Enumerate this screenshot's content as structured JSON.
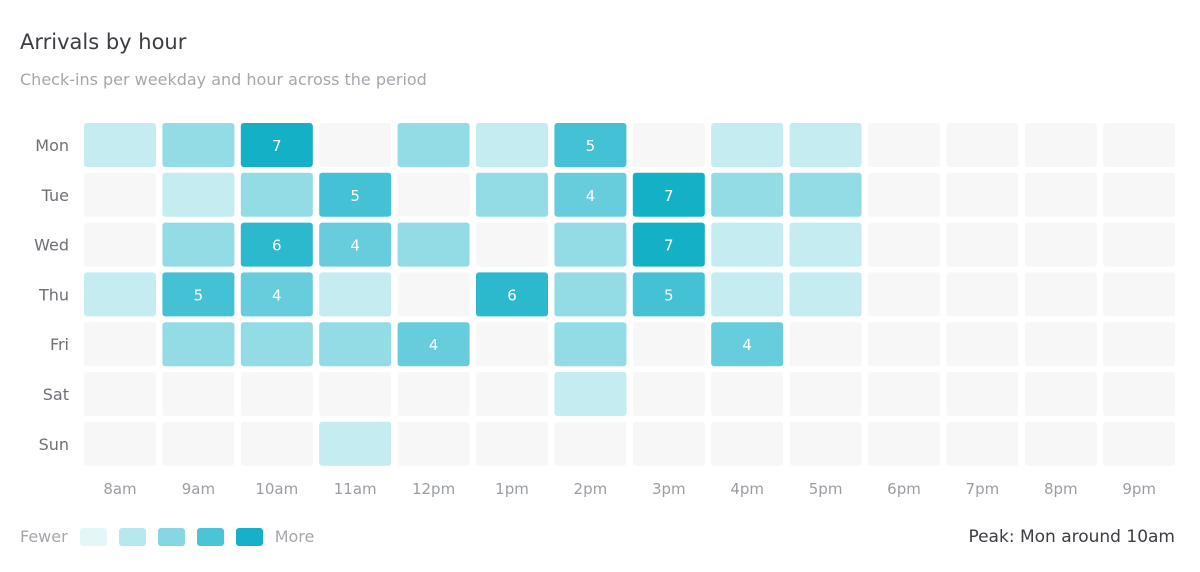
{
  "title": "Arrivals by hour",
  "subtitle": "Check-ins per weekday and hour across the period",
  "legend": {
    "low_label": "Fewer",
    "high_label": "More",
    "colors": [
      "#e3f6f8",
      "#b6e8ee",
      "#86d7e3",
      "#4cc4d8",
      "#16b1c8"
    ]
  },
  "peak_text": "Peak: Mon around 10am",
  "colors": {
    "empty": "#f7f7f7",
    "label_dark": "#3a3d42",
    "label_muted": "#a4a8ad",
    "cell_text": "#ffffff"
  },
  "chart_data": {
    "type": "heatmap",
    "rows": [
      "Mon",
      "Tue",
      "Wed",
      "Thu",
      "Fri",
      "Sat",
      "Sun"
    ],
    "columns": [
      "8am",
      "9am",
      "10am",
      "11am",
      "12pm",
      "1pm",
      "2pm",
      "3pm",
      "4pm",
      "5pm",
      "6pm",
      "7pm",
      "8pm",
      "9pm"
    ],
    "values": [
      [
        2,
        3,
        7,
        0,
        3,
        2,
        5,
        0,
        2,
        2,
        0,
        0,
        0,
        0
      ],
      [
        0,
        2,
        3,
        5,
        0,
        3,
        4,
        7,
        3,
        3,
        0,
        0,
        0,
        0
      ],
      [
        0,
        3,
        6,
        4,
        3,
        0,
        3,
        7,
        2,
        2,
        0,
        0,
        0,
        0
      ],
      [
        2,
        5,
        4,
        2,
        0,
        6,
        3,
        5,
        2,
        2,
        0,
        0,
        0,
        0
      ],
      [
        0,
        3,
        3,
        3,
        4,
        0,
        3,
        0,
        4,
        0,
        0,
        0,
        0,
        0
      ],
      [
        0,
        0,
        0,
        0,
        0,
        0,
        2,
        0,
        0,
        0,
        0,
        0,
        0,
        0
      ],
      [
        0,
        0,
        0,
        2,
        0,
        0,
        0,
        0,
        0,
        0,
        0,
        0,
        0,
        0
      ]
    ],
    "labeled_min": 4,
    "title": "Arrivals by hour",
    "subtitle": "Check-ins per weekday and hour across the period",
    "legend_position": "bottom-left",
    "grid": false
  }
}
